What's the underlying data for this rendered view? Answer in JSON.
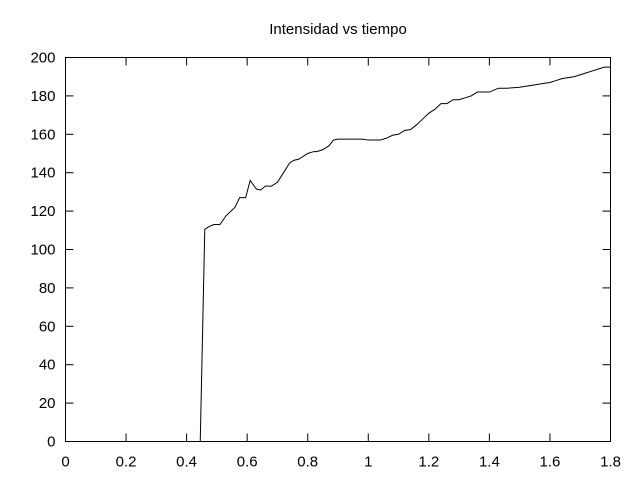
{
  "chart_data": {
    "type": "line",
    "title": "Intensidad vs tiempo",
    "xlabel": "",
    "ylabel": "",
    "xlim": [
      0,
      1.8
    ],
    "ylim": [
      0,
      200
    ],
    "grid": false,
    "x_ticks": [
      "0",
      "0.2",
      "0.4",
      "0.6",
      "0.8",
      "1",
      "1.2",
      "1.4",
      "1.6",
      "1.8"
    ],
    "y_ticks": [
      "0",
      "20",
      "40",
      "60",
      "80",
      "100",
      "120",
      "140",
      "160",
      "180",
      "200"
    ],
    "x_tick_values": [
      0,
      0.2,
      0.4,
      0.6,
      0.8,
      1.0,
      1.2,
      1.4,
      1.6,
      1.8
    ],
    "y_tick_values": [
      0,
      20,
      40,
      60,
      80,
      100,
      120,
      140,
      160,
      180,
      200
    ],
    "series": [
      {
        "color": "#000000",
        "x": [
          0.445,
          0.46,
          0.475,
          0.49,
          0.51,
          0.53,
          0.56,
          0.575,
          0.595,
          0.61,
          0.63,
          0.645,
          0.66,
          0.68,
          0.7,
          0.72,
          0.74,
          0.755,
          0.77,
          0.79,
          0.8,
          0.82,
          0.83,
          0.85,
          0.87,
          0.885,
          0.9,
          0.93,
          0.98,
          1.0,
          1.04,
          1.06,
          1.08,
          1.1,
          1.12,
          1.14,
          1.16,
          1.18,
          1.2,
          1.22,
          1.24,
          1.26,
          1.28,
          1.3,
          1.32,
          1.34,
          1.36,
          1.38,
          1.4,
          1.43,
          1.46,
          1.5,
          1.52,
          1.54,
          1.56,
          1.58,
          1.6,
          1.62,
          1.64,
          1.66,
          1.68,
          1.7,
          1.72,
          1.74,
          1.76,
          1.78,
          1.8
        ],
        "y": [
          0,
          110.5,
          112,
          113,
          113,
          117.5,
          122,
          127,
          127,
          136,
          131.5,
          131,
          133,
          133,
          135,
          140,
          145,
          146.5,
          147,
          149,
          150,
          151,
          151,
          152,
          154,
          157,
          157.5,
          157.5,
          157.5,
          157,
          157,
          158,
          159.5,
          160,
          162,
          162.5,
          165,
          168,
          171,
          173,
          176,
          176,
          178,
          178,
          179,
          180,
          182,
          182,
          182,
          184,
          184,
          184.5,
          185,
          185.5,
          186,
          186.5,
          187,
          188,
          189,
          189.5,
          190,
          191,
          192,
          193,
          194,
          195,
          195
        ]
      }
    ]
  }
}
